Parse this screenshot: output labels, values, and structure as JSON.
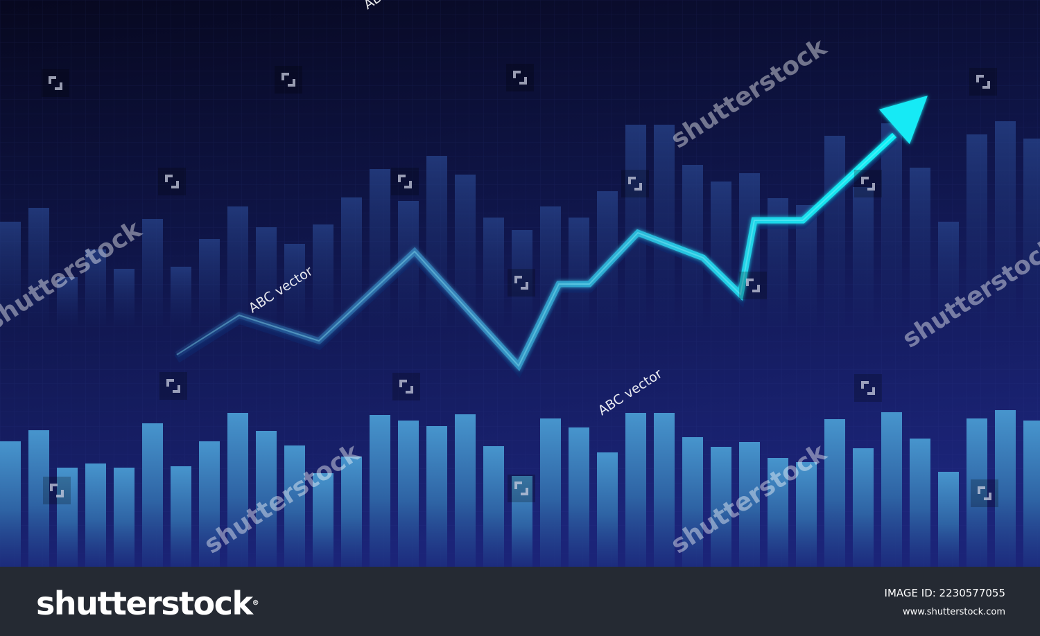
{
  "watermark": {
    "brand": "shutterstock",
    "credit": "ABC vector"
  },
  "footer": {
    "logo_text": "shutterstock",
    "image_id": "IMAGE ID: 2230577055",
    "url": "www.shutterstock.com"
  },
  "colors": {
    "background_top": "#0a0a2a",
    "background_bottom": "#1b2478",
    "bar_front": "#3f8cc6",
    "bar_back": "#1d3577",
    "arrow": "#18e5f2",
    "footer": "#252a33"
  }
}
